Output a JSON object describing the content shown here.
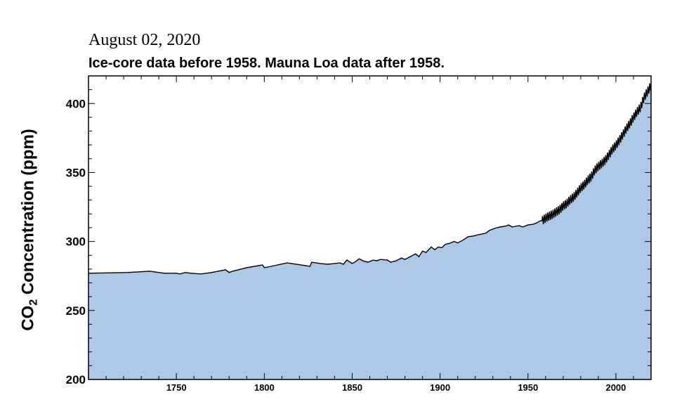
{
  "header": {
    "date": "August 02, 2020",
    "subtitle": "Ice-core data before 1958. Mauna Loa data after 1958."
  },
  "axes": {
    "ylabel_main": "CO",
    "ylabel_sub": "2",
    "ylabel_rest": " Concentration (ppm)"
  },
  "colors": {
    "fill": "#adc9e7",
    "line": "#000000"
  },
  "chart_data": {
    "type": "area",
    "title": "Ice-core data before 1958. Mauna Loa data after 1958.",
    "xlabel": "",
    "ylabel": "CO2 Concentration (ppm)",
    "xlim": [
      1700,
      2020
    ],
    "ylim": [
      200,
      420
    ],
    "x_ticks": [
      1750,
      1800,
      1850,
      1900,
      1950,
      2000
    ],
    "y_ticks": [
      200,
      250,
      300,
      350,
      400
    ],
    "grid": false,
    "x": [
      1700,
      1722,
      1735,
      1743,
      1750,
      1752,
      1755,
      1758,
      1764,
      1770,
      1778,
      1780,
      1782,
      1790,
      1799,
      1800,
      1802,
      1813,
      1826,
      1827,
      1832,
      1836,
      1840,
      1843,
      1845,
      1847,
      1850,
      1852,
      1854,
      1856,
      1859,
      1862,
      1864,
      1866,
      1870,
      1872,
      1875,
      1878,
      1880,
      1883,
      1886,
      1888,
      1890,
      1892,
      1895,
      1897,
      1899,
      1901,
      1903,
      1905,
      1908,
      1910,
      1913,
      1916,
      1919,
      1922,
      1926,
      1928,
      1931,
      1934,
      1937,
      1939,
      1941,
      1943,
      1945,
      1947,
      1950,
      1953,
      1955,
      1957,
      1958,
      1960,
      1962,
      1964,
      1966,
      1968,
      1970,
      1972,
      1974,
      1976,
      1978,
      1980,
      1982,
      1984,
      1986,
      1988,
      1990,
      1992,
      1994,
      1996,
      1998,
      2000,
      2002,
      2004,
      2006,
      2008,
      2010,
      2012,
      2014,
      2016,
      2018,
      2020
    ],
    "y": [
      277.0,
      277.5,
      278.5,
      277.0,
      277.0,
      276.5,
      277.5,
      277.0,
      276.5,
      277.5,
      279.5,
      277.5,
      278.5,
      281.0,
      283.0,
      281.0,
      281.5,
      284.5,
      282.0,
      285.0,
      284.0,
      283.5,
      284.0,
      284.5,
      283.5,
      286.5,
      284.0,
      285.5,
      287.5,
      286.0,
      285.0,
      286.5,
      286.0,
      287.0,
      286.5,
      285.0,
      286.0,
      288.0,
      287.0,
      289.0,
      291.0,
      289.0,
      293.0,
      292.0,
      296.0,
      294.0,
      296.0,
      295.5,
      298.0,
      298.5,
      300.0,
      299.0,
      301.0,
      303.5,
      304.0,
      305.0,
      306.0,
      308.0,
      309.5,
      310.5,
      311.0,
      312.0,
      310.5,
      311.0,
      311.5,
      310.5,
      312.0,
      312.5,
      313.5,
      315.0,
      315.0,
      316.9,
      318.4,
      319.6,
      321.4,
      323.0,
      325.7,
      327.5,
      330.2,
      332.2,
      335.4,
      338.8,
      341.1,
      344.4,
      346.9,
      351.6,
      354.4,
      356.5,
      359.0,
      362.7,
      366.7,
      369.7,
      373.4,
      377.5,
      381.9,
      385.6,
      389.9,
      393.9,
      397.2,
      404.2,
      408.7,
      413.0
    ]
  }
}
